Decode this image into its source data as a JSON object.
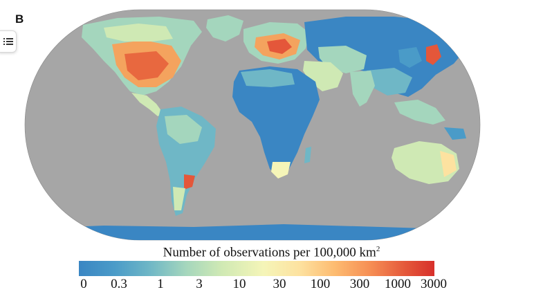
{
  "panel_letter": "B",
  "legend": {
    "title": "Number of observations per 100,000 km",
    "title_sup": "2",
    "ticks": [
      "0",
      "0.3",
      "1",
      "3",
      "10",
      "30",
      "100",
      "300",
      "1000",
      "3000"
    ]
  },
  "colors": {
    "ocean": "#a6a6a6",
    "low": "#3a86c3",
    "mid": "#f5f5b8",
    "high": "#d7302b"
  },
  "icons": {
    "toc": "list-icon"
  }
}
